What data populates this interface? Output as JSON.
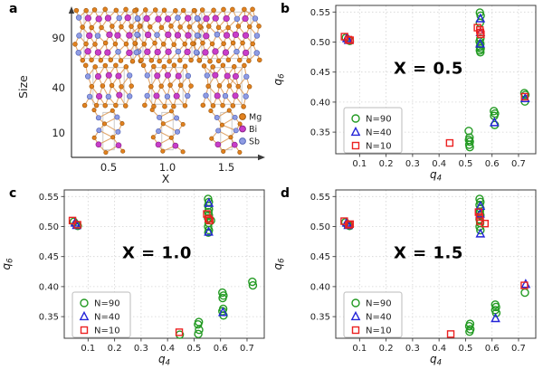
{
  "figure": {
    "background": "#ffffff"
  },
  "panel_a": {
    "label": "a",
    "xlabel": "X",
    "ylabel": "Size",
    "x_ticks": [
      "0.5",
      "1.0",
      "1.5"
    ],
    "y_ticks": [
      "90",
      "40",
      "10"
    ],
    "legend": [
      {
        "label": "Mg",
        "color": "#e2811e",
        "ring": "#a05a10"
      },
      {
        "label": "Bi",
        "color": "#c93dc9",
        "ring": "#8b278b"
      },
      {
        "label": "Sb",
        "color": "#8f9ce4",
        "ring": "#5566b8"
      }
    ],
    "bond_color": "#dd9a55",
    "box_color": "#bdbdbd",
    "axis_color": "#3a3a3a"
  },
  "chart_data": [
    {
      "panel_label": "b",
      "type": "scatter",
      "annotation": "X = 0.5",
      "xlabel_base": "q",
      "xlabel_sub": "4",
      "ylabel_base": "q",
      "ylabel_sub": "6",
      "xlim": [
        0.01,
        0.765
      ],
      "ylim": [
        0.314,
        0.561
      ],
      "xticks": [
        0.1,
        0.2,
        0.3,
        0.4,
        0.5,
        0.6,
        0.7
      ],
      "xtick_labels": [
        "0.1",
        "0.2",
        "0.3",
        "0.4",
        "0.5",
        "0.6",
        "0.7"
      ],
      "yticks": [
        0.35,
        0.4,
        0.45,
        0.5,
        0.55
      ],
      "ytick_labels": [
        "0.35",
        "0.40",
        "0.45",
        "0.50",
        "0.55"
      ],
      "grid": true,
      "legend_position": "lower-left",
      "series": [
        {
          "name": "N=90",
          "marker": "circle",
          "color": "#229a22",
          "points": [
            [
              0.048,
              0.507
            ],
            [
              0.056,
              0.504
            ],
            [
              0.063,
              0.502
            ],
            [
              0.554,
              0.549
            ],
            [
              0.557,
              0.544
            ],
            [
              0.554,
              0.532
            ],
            [
              0.556,
              0.506
            ],
            [
              0.553,
              0.501
            ],
            [
              0.556,
              0.497
            ],
            [
              0.554,
              0.492
            ],
            [
              0.557,
              0.489
            ],
            [
              0.554,
              0.486
            ],
            [
              0.556,
              0.483
            ],
            [
              0.512,
              0.352
            ],
            [
              0.515,
              0.341
            ],
            [
              0.513,
              0.337
            ],
            [
              0.516,
              0.334
            ],
            [
              0.514,
              0.329
            ],
            [
              0.516,
              0.325
            ],
            [
              0.607,
              0.385
            ],
            [
              0.611,
              0.381
            ],
            [
              0.608,
              0.377
            ],
            [
              0.61,
              0.362
            ],
            [
              0.722,
              0.415
            ],
            [
              0.726,
              0.412
            ],
            [
              0.724,
              0.401
            ]
          ]
        },
        {
          "name": "N=40",
          "marker": "triangle",
          "color": "#2424d8",
          "points": [
            [
              0.052,
              0.506
            ],
            [
              0.058,
              0.503
            ],
            [
              0.556,
              0.539
            ],
            [
              0.556,
              0.516
            ],
            [
              0.555,
              0.497
            ],
            [
              0.609,
              0.366
            ],
            [
              0.725,
              0.406
            ]
          ]
        },
        {
          "name": "N=10",
          "marker": "square",
          "color": "#ec2121",
          "points": [
            [
              0.043,
              0.509
            ],
            [
              0.058,
              0.504
            ],
            [
              0.064,
              0.503
            ],
            [
              0.545,
              0.524
            ],
            [
              0.554,
              0.52
            ],
            [
              0.556,
              0.516
            ],
            [
              0.558,
              0.513
            ],
            [
              0.44,
              0.332
            ],
            [
              0.723,
              0.409
            ]
          ]
        }
      ]
    },
    {
      "panel_label": "c",
      "type": "scatter",
      "annotation": "X = 1.0",
      "xlabel_base": "q",
      "xlabel_sub": "4",
      "ylabel_base": "q",
      "ylabel_sub": "6",
      "xlim": [
        0.01,
        0.765
      ],
      "ylim": [
        0.314,
        0.561
      ],
      "xticks": [
        0.1,
        0.2,
        0.3,
        0.4,
        0.5,
        0.6,
        0.7
      ],
      "xtick_labels": [
        "0.1",
        "0.2",
        "0.3",
        "0.4",
        "0.5",
        "0.6",
        "0.7"
      ],
      "yticks": [
        0.35,
        0.4,
        0.45,
        0.5,
        0.55
      ],
      "ytick_labels": [
        "0.35",
        "0.40",
        "0.45",
        "0.50",
        "0.55"
      ],
      "grid": true,
      "legend_position": "lower-left",
      "series": [
        {
          "name": "N=90",
          "marker": "circle",
          "color": "#229a22",
          "points": [
            [
              0.046,
              0.508
            ],
            [
              0.054,
              0.504
            ],
            [
              0.061,
              0.501
            ],
            [
              0.553,
              0.546
            ],
            [
              0.556,
              0.541
            ],
            [
              0.553,
              0.535
            ],
            [
              0.556,
              0.529
            ],
            [
              0.554,
              0.524
            ],
            [
              0.556,
              0.519
            ],
            [
              0.553,
              0.514
            ],
            [
              0.564,
              0.51
            ],
            [
              0.555,
              0.506
            ],
            [
              0.553,
              0.5
            ],
            [
              0.556,
              0.494
            ],
            [
              0.554,
              0.49
            ],
            [
              0.446,
              0.32
            ],
            [
              0.518,
              0.341
            ],
            [
              0.515,
              0.337
            ],
            [
              0.519,
              0.328
            ],
            [
              0.516,
              0.321
            ],
            [
              0.607,
              0.39
            ],
            [
              0.611,
              0.385
            ],
            [
              0.608,
              0.381
            ],
            [
              0.61,
              0.363
            ],
            [
              0.607,
              0.359
            ],
            [
              0.611,
              0.352
            ],
            [
              0.72,
              0.408
            ],
            [
              0.722,
              0.402
            ]
          ]
        },
        {
          "name": "N=40",
          "marker": "triangle",
          "color": "#2424d8",
          "points": [
            [
              0.051,
              0.506
            ],
            [
              0.057,
              0.502
            ],
            [
              0.556,
              0.539
            ],
            [
              0.555,
              0.491
            ],
            [
              0.609,
              0.357
            ]
          ]
        },
        {
          "name": "N=10",
          "marker": "square",
          "color": "#ec2121",
          "points": [
            [
              0.041,
              0.51
            ],
            [
              0.06,
              0.503
            ],
            [
              0.548,
              0.521
            ],
            [
              0.554,
              0.513
            ],
            [
              0.559,
              0.51
            ],
            [
              0.444,
              0.324
            ]
          ]
        }
      ]
    },
    {
      "panel_label": "d",
      "type": "scatter",
      "annotation": "X = 1.5",
      "xlabel_base": "q",
      "xlabel_sub": "4",
      "ylabel_base": "q",
      "ylabel_sub": "6",
      "xlim": [
        0.01,
        0.765
      ],
      "ylim": [
        0.314,
        0.561
      ],
      "xticks": [
        0.1,
        0.2,
        0.3,
        0.4,
        0.5,
        0.6,
        0.7
      ],
      "xtick_labels": [
        "0.1",
        "0.2",
        "0.3",
        "0.4",
        "0.5",
        "0.6",
        "0.7"
      ],
      "yticks": [
        0.35,
        0.4,
        0.45,
        0.5,
        0.55
      ],
      "ytick_labels": [
        "0.35",
        "0.40",
        "0.45",
        "0.50",
        "0.55"
      ],
      "grid": true,
      "legend_position": "lower-left",
      "series": [
        {
          "name": "N=90",
          "marker": "circle",
          "color": "#229a22",
          "points": [
            [
              0.046,
              0.507
            ],
            [
              0.054,
              0.503
            ],
            [
              0.062,
              0.501
            ],
            [
              0.553,
              0.546
            ],
            [
              0.556,
              0.541
            ],
            [
              0.553,
              0.536
            ],
            [
              0.556,
              0.53
            ],
            [
              0.554,
              0.525
            ],
            [
              0.556,
              0.519
            ],
            [
              0.553,
              0.512
            ],
            [
              0.555,
              0.506
            ],
            [
              0.553,
              0.5
            ],
            [
              0.556,
              0.494
            ],
            [
              0.517,
              0.338
            ],
            [
              0.514,
              0.334
            ],
            [
              0.518,
              0.329
            ],
            [
              0.515,
              0.325
            ],
            [
              0.612,
              0.37
            ],
            [
              0.615,
              0.366
            ],
            [
              0.612,
              0.361
            ],
            [
              0.616,
              0.356
            ],
            [
              0.724,
              0.39
            ]
          ]
        },
        {
          "name": "N=40",
          "marker": "triangle",
          "color": "#2424d8",
          "points": [
            [
              0.051,
              0.506
            ],
            [
              0.057,
              0.502
            ],
            [
              0.556,
              0.534
            ],
            [
              0.555,
              0.521
            ],
            [
              0.556,
              0.488
            ],
            [
              0.613,
              0.347
            ],
            [
              0.727,
              0.404
            ]
          ]
        },
        {
          "name": "N=10",
          "marker": "square",
          "color": "#ec2121",
          "points": [
            [
              0.042,
              0.509
            ],
            [
              0.059,
              0.503
            ],
            [
              0.064,
              0.504
            ],
            [
              0.549,
              0.524
            ],
            [
              0.553,
              0.516
            ],
            [
              0.555,
              0.509
            ],
            [
              0.573,
              0.505
            ],
            [
              0.444,
              0.321
            ],
            [
              0.722,
              0.402
            ]
          ]
        }
      ]
    }
  ]
}
